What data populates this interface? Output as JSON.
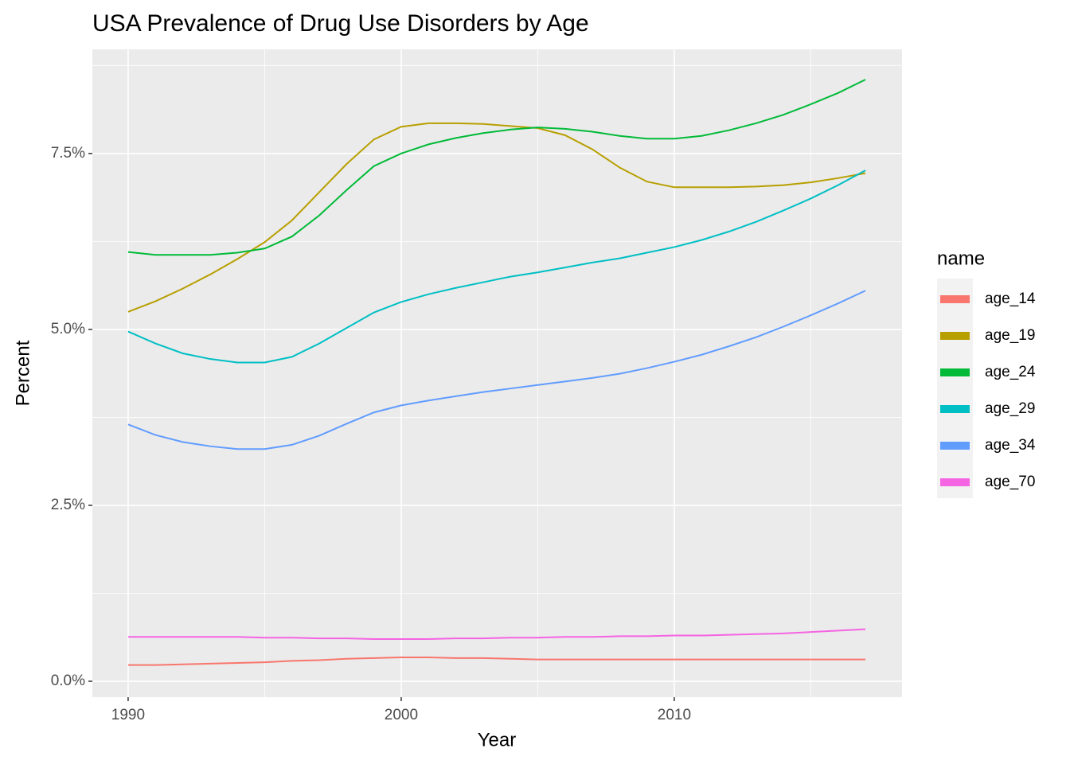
{
  "chart_data": {
    "type": "line",
    "title": "USA Prevalence of Drug Use Disorders by Age",
    "x_label": "Year",
    "y_label": "Percent",
    "legend_title": "name",
    "x": [
      1990,
      1991,
      1992,
      1993,
      1994,
      1995,
      1996,
      1997,
      1998,
      1999,
      2000,
      2001,
      2002,
      2003,
      2004,
      2005,
      2006,
      2007,
      2008,
      2009,
      2010,
      2011,
      2012,
      2013,
      2014,
      2015,
      2016,
      2017
    ],
    "series": [
      {
        "name": "age_14",
        "color": "#F8766D",
        "values": [
          0.23,
          0.23,
          0.24,
          0.25,
          0.26,
          0.27,
          0.29,
          0.3,
          0.32,
          0.33,
          0.34,
          0.34,
          0.33,
          0.33,
          0.32,
          0.31,
          0.31,
          0.31,
          0.31,
          0.31,
          0.31,
          0.31,
          0.31,
          0.31,
          0.31,
          0.31,
          0.31,
          0.31
        ]
      },
      {
        "name": "age_19",
        "color": "#B79F00",
        "values": [
          5.25,
          5.4,
          5.58,
          5.78,
          6.0,
          6.24,
          6.55,
          6.95,
          7.35,
          7.7,
          7.88,
          7.93,
          7.93,
          7.92,
          7.89,
          7.86,
          7.76,
          7.56,
          7.3,
          7.1,
          7.02,
          7.02,
          7.02,
          7.03,
          7.05,
          7.09,
          7.15,
          7.22
        ]
      },
      {
        "name": "age_24",
        "color": "#00BA38",
        "values": [
          6.1,
          6.06,
          6.06,
          6.06,
          6.09,
          6.15,
          6.32,
          6.62,
          6.98,
          7.32,
          7.5,
          7.63,
          7.72,
          7.79,
          7.84,
          7.87,
          7.85,
          7.81,
          7.75,
          7.71,
          7.71,
          7.75,
          7.83,
          7.93,
          8.05,
          8.2,
          8.36,
          8.55
        ]
      },
      {
        "name": "age_29",
        "color": "#00BFC4",
        "values": [
          4.97,
          4.8,
          4.66,
          4.58,
          4.53,
          4.53,
          4.61,
          4.8,
          5.02,
          5.24,
          5.39,
          5.5,
          5.59,
          5.67,
          5.75,
          5.81,
          5.88,
          5.95,
          6.01,
          6.09,
          6.17,
          6.27,
          6.39,
          6.53,
          6.69,
          6.86,
          7.05,
          7.26
        ]
      },
      {
        "name": "age_34",
        "color": "#619CFF",
        "values": [
          3.65,
          3.5,
          3.4,
          3.34,
          3.3,
          3.3,
          3.36,
          3.49,
          3.66,
          3.82,
          3.92,
          3.99,
          4.05,
          4.11,
          4.16,
          4.21,
          4.26,
          4.31,
          4.37,
          4.45,
          4.54,
          4.64,
          4.76,
          4.89,
          5.04,
          5.2,
          5.37,
          5.55
        ]
      },
      {
        "name": "age_70",
        "color": "#F564E3",
        "values": [
          0.63,
          0.63,
          0.63,
          0.63,
          0.63,
          0.62,
          0.62,
          0.61,
          0.61,
          0.6,
          0.6,
          0.6,
          0.61,
          0.61,
          0.62,
          0.62,
          0.63,
          0.63,
          0.64,
          0.64,
          0.65,
          0.65,
          0.66,
          0.67,
          0.68,
          0.7,
          0.72,
          0.74
        ]
      }
    ],
    "xlim": [
      1988.69,
      2018.34
    ],
    "xticks": [
      1990,
      2000,
      2010
    ],
    "xminorticks": [
      1995,
      2005,
      2015
    ],
    "ylim": [
      -0.226,
      8.98
    ],
    "yticks": [
      {
        "value": 0,
        "label": "0.0%"
      },
      {
        "value": 2.5,
        "label": "2.5%"
      },
      {
        "value": 5,
        "label": "5.0%"
      },
      {
        "value": 7.5,
        "label": "7.5%"
      }
    ],
    "yminorticks": [
      1.25,
      3.75,
      6.25,
      8.75
    ],
    "grid": true,
    "legend": "right"
  }
}
